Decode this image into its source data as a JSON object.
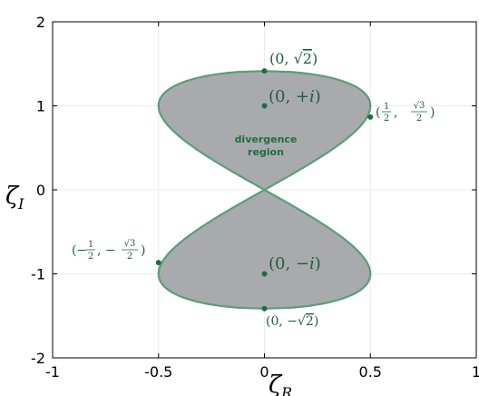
{
  "chart_data": {
    "type": "area",
    "title": "",
    "xlabel": "ζ",
    "xlabel_sub": "R",
    "ylabel": "ζ",
    "ylabel_sub": "I",
    "xlim": [
      -1,
      1
    ],
    "ylim": [
      -2,
      2
    ],
    "xticks": [
      -1,
      -0.5,
      0,
      0.5,
      1
    ],
    "xtick_labels": [
      "-1",
      "-0.5",
      "0",
      "0.5",
      "1"
    ],
    "yticks": [
      -2,
      -1,
      0,
      1,
      2
    ],
    "ytick_labels": [
      "-2",
      "-1",
      "0",
      "1",
      "2"
    ],
    "grid": true,
    "region": {
      "label_line1": "divergence",
      "label_line2": "region",
      "boundary": "figure-eight lemniscate through the origin",
      "fill_color": "#a9aaae",
      "edge_color": "#5a9e78"
    },
    "points": [
      {
        "x": 0,
        "y": 1.4142,
        "label": "(0, √2)"
      },
      {
        "x": 0,
        "y": 1,
        "label": "(0, +i)"
      },
      {
        "x": 0.5,
        "y": 0.866,
        "label": "(1/2, √3/2)"
      },
      {
        "x": -0.5,
        "y": -0.866,
        "label": "(−1/2, −√3/2)"
      },
      {
        "x": 0,
        "y": -1,
        "label": "(0, −i)"
      },
      {
        "x": 0,
        "y": -1.4142,
        "label": "(0, −√2)"
      }
    ],
    "point_color": "#1e6e40"
  }
}
